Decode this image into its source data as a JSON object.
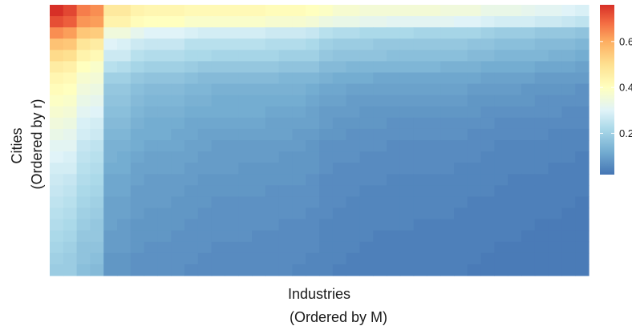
{
  "chart_data": {
    "type": "heatmap",
    "title": "",
    "xlabel": "Industries",
    "xlabel_sub": "(Ordered by M)",
    "ylabel": "Cities",
    "ylabel_sub": "(Ordered by r)",
    "x_tick_labels": [],
    "y_tick_labels": [],
    "grid": false,
    "legend_position": "right",
    "color_scale": {
      "type": "continuous",
      "range": [
        0.02,
        0.76
      ],
      "ticks": [
        0.2,
        0.4,
        0.6
      ],
      "tick_labels": [
        "0.2",
        "0.4",
        "0.6"
      ],
      "palette": [
        [
          0.02,
          "#4575b4"
        ],
        [
          0.12,
          "#74add1"
        ],
        [
          0.22,
          "#abd9e9"
        ],
        [
          0.3,
          "#e0f3f8"
        ],
        [
          0.4,
          "#ffffbf"
        ],
        [
          0.5,
          "#fee090"
        ],
        [
          0.6,
          "#fdae61"
        ],
        [
          0.68,
          "#f46d43"
        ],
        [
          0.76,
          "#d73027"
        ]
      ]
    },
    "rows": 24,
    "cols": 40,
    "values": [
      [
        0.76,
        0.73,
        0.66,
        0.64,
        0.47,
        0.47,
        0.44,
        0.43,
        0.43,
        0.43,
        0.42,
        0.42,
        0.42,
        0.42,
        0.42,
        0.42,
        0.41,
        0.41,
        0.41,
        0.4,
        0.39,
        0.37,
        0.37,
        0.36,
        0.36,
        0.36,
        0.36,
        0.36,
        0.36,
        0.35,
        0.35,
        0.35,
        0.33,
        0.33,
        0.33,
        0.32,
        0.31,
        0.31,
        0.3,
        0.29
      ],
      [
        0.72,
        0.7,
        0.63,
        0.62,
        0.44,
        0.44,
        0.41,
        0.4,
        0.4,
        0.4,
        0.38,
        0.38,
        0.38,
        0.38,
        0.38,
        0.38,
        0.37,
        0.37,
        0.37,
        0.36,
        0.34,
        0.33,
        0.33,
        0.32,
        0.32,
        0.31,
        0.31,
        0.31,
        0.31,
        0.31,
        0.3,
        0.3,
        0.29,
        0.28,
        0.28,
        0.28,
        0.27,
        0.27,
        0.26,
        0.25
      ],
      [
        0.64,
        0.62,
        0.55,
        0.54,
        0.35,
        0.35,
        0.32,
        0.3,
        0.3,
        0.3,
        0.29,
        0.28,
        0.28,
        0.28,
        0.28,
        0.28,
        0.27,
        0.27,
        0.27,
        0.26,
        0.24,
        0.23,
        0.23,
        0.22,
        0.22,
        0.22,
        0.22,
        0.21,
        0.21,
        0.21,
        0.21,
        0.21,
        0.2,
        0.19,
        0.19,
        0.19,
        0.18,
        0.18,
        0.18,
        0.17
      ],
      [
        0.56,
        0.55,
        0.48,
        0.46,
        0.3,
        0.29,
        0.27,
        0.26,
        0.26,
        0.26,
        0.24,
        0.24,
        0.24,
        0.24,
        0.24,
        0.24,
        0.23,
        0.23,
        0.23,
        0.22,
        0.2,
        0.19,
        0.19,
        0.19,
        0.18,
        0.18,
        0.18,
        0.18,
        0.18,
        0.18,
        0.18,
        0.17,
        0.17,
        0.16,
        0.16,
        0.16,
        0.15,
        0.15,
        0.15,
        0.14
      ],
      [
        0.51,
        0.5,
        0.44,
        0.42,
        0.27,
        0.27,
        0.24,
        0.23,
        0.23,
        0.23,
        0.22,
        0.22,
        0.21,
        0.21,
        0.21,
        0.21,
        0.21,
        0.2,
        0.2,
        0.2,
        0.18,
        0.17,
        0.17,
        0.17,
        0.17,
        0.16,
        0.16,
        0.16,
        0.16,
        0.16,
        0.16,
        0.15,
        0.15,
        0.14,
        0.14,
        0.14,
        0.14,
        0.13,
        0.13,
        0.12
      ],
      [
        0.46,
        0.45,
        0.4,
        0.38,
        0.24,
        0.23,
        0.21,
        0.2,
        0.2,
        0.2,
        0.19,
        0.18,
        0.18,
        0.18,
        0.18,
        0.18,
        0.18,
        0.17,
        0.17,
        0.17,
        0.15,
        0.15,
        0.14,
        0.14,
        0.14,
        0.14,
        0.14,
        0.14,
        0.14,
        0.13,
        0.13,
        0.13,
        0.12,
        0.12,
        0.12,
        0.12,
        0.11,
        0.11,
        0.11,
        0.1
      ],
      [
        0.43,
        0.42,
        0.37,
        0.36,
        0.2,
        0.2,
        0.18,
        0.17,
        0.17,
        0.17,
        0.16,
        0.15,
        0.15,
        0.15,
        0.15,
        0.15,
        0.15,
        0.14,
        0.14,
        0.14,
        0.13,
        0.12,
        0.12,
        0.12,
        0.11,
        0.11,
        0.11,
        0.11,
        0.11,
        0.11,
        0.11,
        0.11,
        0.1,
        0.1,
        0.1,
        0.1,
        0.09,
        0.09,
        0.09,
        0.09
      ],
      [
        0.41,
        0.4,
        0.35,
        0.34,
        0.18,
        0.18,
        0.16,
        0.15,
        0.15,
        0.15,
        0.14,
        0.14,
        0.13,
        0.13,
        0.13,
        0.13,
        0.13,
        0.13,
        0.13,
        0.12,
        0.11,
        0.11,
        0.1,
        0.1,
        0.1,
        0.1,
        0.1,
        0.1,
        0.1,
        0.1,
        0.1,
        0.09,
        0.09,
        0.09,
        0.09,
        0.08,
        0.08,
        0.08,
        0.08,
        0.07
      ],
      [
        0.39,
        0.38,
        0.33,
        0.32,
        0.17,
        0.17,
        0.15,
        0.14,
        0.14,
        0.14,
        0.13,
        0.13,
        0.12,
        0.12,
        0.12,
        0.12,
        0.12,
        0.12,
        0.12,
        0.11,
        0.1,
        0.1,
        0.09,
        0.09,
        0.09,
        0.09,
        0.09,
        0.09,
        0.09,
        0.09,
        0.09,
        0.08,
        0.08,
        0.08,
        0.08,
        0.08,
        0.07,
        0.07,
        0.07,
        0.07
      ],
      [
        0.37,
        0.36,
        0.31,
        0.3,
        0.16,
        0.16,
        0.14,
        0.13,
        0.13,
        0.13,
        0.12,
        0.12,
        0.12,
        0.12,
        0.12,
        0.12,
        0.11,
        0.11,
        0.11,
        0.1,
        0.09,
        0.09,
        0.09,
        0.08,
        0.08,
        0.08,
        0.08,
        0.08,
        0.08,
        0.08,
        0.08,
        0.08,
        0.07,
        0.07,
        0.07,
        0.07,
        0.07,
        0.07,
        0.06,
        0.06
      ],
      [
        0.35,
        0.34,
        0.29,
        0.28,
        0.15,
        0.15,
        0.13,
        0.12,
        0.12,
        0.12,
        0.11,
        0.11,
        0.11,
        0.11,
        0.11,
        0.11,
        0.1,
        0.1,
        0.1,
        0.1,
        0.09,
        0.08,
        0.08,
        0.08,
        0.08,
        0.07,
        0.07,
        0.07,
        0.07,
        0.07,
        0.07,
        0.07,
        0.07,
        0.06,
        0.06,
        0.06,
        0.06,
        0.06,
        0.06,
        0.06
      ],
      [
        0.33,
        0.32,
        0.28,
        0.27,
        0.14,
        0.14,
        0.12,
        0.12,
        0.12,
        0.11,
        0.11,
        0.1,
        0.1,
        0.1,
        0.1,
        0.1,
        0.1,
        0.1,
        0.09,
        0.09,
        0.08,
        0.08,
        0.07,
        0.07,
        0.07,
        0.07,
        0.07,
        0.07,
        0.07,
        0.07,
        0.07,
        0.06,
        0.06,
        0.06,
        0.06,
        0.06,
        0.06,
        0.05,
        0.05,
        0.05
      ],
      [
        0.31,
        0.31,
        0.26,
        0.25,
        0.13,
        0.13,
        0.12,
        0.11,
        0.11,
        0.11,
        0.1,
        0.1,
        0.09,
        0.09,
        0.09,
        0.09,
        0.09,
        0.09,
        0.09,
        0.08,
        0.07,
        0.07,
        0.07,
        0.07,
        0.07,
        0.06,
        0.06,
        0.06,
        0.06,
        0.06,
        0.06,
        0.06,
        0.06,
        0.05,
        0.05,
        0.05,
        0.05,
        0.05,
        0.05,
        0.05
      ],
      [
        0.3,
        0.29,
        0.25,
        0.24,
        0.13,
        0.12,
        0.11,
        0.1,
        0.1,
        0.1,
        0.1,
        0.09,
        0.09,
        0.09,
        0.09,
        0.09,
        0.09,
        0.08,
        0.08,
        0.08,
        0.07,
        0.07,
        0.07,
        0.06,
        0.06,
        0.06,
        0.06,
        0.06,
        0.06,
        0.06,
        0.06,
        0.06,
        0.05,
        0.05,
        0.05,
        0.05,
        0.05,
        0.05,
        0.05,
        0.04
      ],
      [
        0.28,
        0.28,
        0.24,
        0.23,
        0.12,
        0.12,
        0.1,
        0.1,
        0.1,
        0.1,
        0.09,
        0.09,
        0.09,
        0.09,
        0.08,
        0.08,
        0.08,
        0.08,
        0.08,
        0.08,
        0.07,
        0.06,
        0.06,
        0.06,
        0.06,
        0.06,
        0.06,
        0.06,
        0.06,
        0.06,
        0.05,
        0.05,
        0.05,
        0.05,
        0.05,
        0.05,
        0.05,
        0.04,
        0.04,
        0.04
      ],
      [
        0.27,
        0.26,
        0.23,
        0.22,
        0.11,
        0.11,
        0.1,
        0.09,
        0.09,
        0.09,
        0.09,
        0.08,
        0.08,
        0.08,
        0.08,
        0.08,
        0.08,
        0.08,
        0.08,
        0.07,
        0.06,
        0.06,
        0.06,
        0.06,
        0.06,
        0.05,
        0.05,
        0.05,
        0.05,
        0.05,
        0.05,
        0.05,
        0.05,
        0.05,
        0.04,
        0.04,
        0.04,
        0.04,
        0.04,
        0.04
      ],
      [
        0.26,
        0.25,
        0.22,
        0.21,
        0.11,
        0.11,
        0.09,
        0.09,
        0.09,
        0.09,
        0.08,
        0.08,
        0.08,
        0.08,
        0.08,
        0.08,
        0.07,
        0.07,
        0.07,
        0.07,
        0.06,
        0.06,
        0.06,
        0.05,
        0.05,
        0.05,
        0.05,
        0.05,
        0.05,
        0.05,
        0.05,
        0.05,
        0.05,
        0.04,
        0.04,
        0.04,
        0.04,
        0.04,
        0.04,
        0.04
      ],
      [
        0.25,
        0.24,
        0.21,
        0.2,
        0.1,
        0.1,
        0.09,
        0.09,
        0.09,
        0.08,
        0.08,
        0.08,
        0.07,
        0.07,
        0.07,
        0.07,
        0.07,
        0.07,
        0.07,
        0.07,
        0.06,
        0.06,
        0.05,
        0.05,
        0.05,
        0.05,
        0.05,
        0.05,
        0.05,
        0.05,
        0.05,
        0.04,
        0.04,
        0.04,
        0.04,
        0.04,
        0.04,
        0.04,
        0.04,
        0.03
      ],
      [
        0.24,
        0.23,
        0.2,
        0.19,
        0.1,
        0.1,
        0.09,
        0.08,
        0.08,
        0.08,
        0.08,
        0.07,
        0.07,
        0.07,
        0.07,
        0.07,
        0.07,
        0.07,
        0.07,
        0.06,
        0.06,
        0.05,
        0.05,
        0.05,
        0.05,
        0.05,
        0.05,
        0.05,
        0.05,
        0.05,
        0.04,
        0.04,
        0.04,
        0.04,
        0.04,
        0.04,
        0.04,
        0.04,
        0.03,
        0.03
      ],
      [
        0.23,
        0.22,
        0.19,
        0.18,
        0.1,
        0.09,
        0.08,
        0.08,
        0.08,
        0.08,
        0.07,
        0.07,
        0.07,
        0.07,
        0.07,
        0.07,
        0.07,
        0.06,
        0.06,
        0.06,
        0.05,
        0.05,
        0.05,
        0.05,
        0.05,
        0.05,
        0.05,
        0.04,
        0.04,
        0.04,
        0.04,
        0.04,
        0.04,
        0.04,
        0.04,
        0.04,
        0.03,
        0.03,
        0.03,
        0.03
      ],
      [
        0.22,
        0.21,
        0.18,
        0.18,
        0.09,
        0.09,
        0.08,
        0.08,
        0.08,
        0.07,
        0.07,
        0.07,
        0.07,
        0.07,
        0.07,
        0.06,
        0.06,
        0.06,
        0.06,
        0.06,
        0.05,
        0.05,
        0.05,
        0.05,
        0.04,
        0.04,
        0.04,
        0.04,
        0.04,
        0.04,
        0.04,
        0.04,
        0.04,
        0.04,
        0.04,
        0.03,
        0.03,
        0.03,
        0.03,
        0.03
      ],
      [
        0.21,
        0.2,
        0.17,
        0.17,
        0.09,
        0.09,
        0.08,
        0.07,
        0.07,
        0.07,
        0.07,
        0.07,
        0.06,
        0.06,
        0.06,
        0.06,
        0.06,
        0.06,
        0.06,
        0.06,
        0.05,
        0.05,
        0.05,
        0.04,
        0.04,
        0.04,
        0.04,
        0.04,
        0.04,
        0.04,
        0.04,
        0.04,
        0.04,
        0.03,
        0.03,
        0.03,
        0.03,
        0.03,
        0.03,
        0.03
      ],
      [
        0.2,
        0.19,
        0.17,
        0.16,
        0.08,
        0.08,
        0.07,
        0.07,
        0.07,
        0.07,
        0.07,
        0.06,
        0.06,
        0.06,
        0.06,
        0.06,
        0.06,
        0.06,
        0.06,
        0.05,
        0.05,
        0.05,
        0.04,
        0.04,
        0.04,
        0.04,
        0.04,
        0.04,
        0.04,
        0.04,
        0.04,
        0.04,
        0.03,
        0.03,
        0.03,
        0.03,
        0.03,
        0.03,
        0.03,
        0.03
      ],
      [
        0.19,
        0.19,
        0.16,
        0.15,
        0.08,
        0.08,
        0.07,
        0.07,
        0.07,
        0.07,
        0.06,
        0.06,
        0.06,
        0.06,
        0.06,
        0.06,
        0.06,
        0.06,
        0.05,
        0.05,
        0.05,
        0.04,
        0.04,
        0.04,
        0.04,
        0.04,
        0.04,
        0.04,
        0.04,
        0.04,
        0.04,
        0.03,
        0.03,
        0.03,
        0.03,
        0.03,
        0.03,
        0.03,
        0.03,
        0.03
      ]
    ]
  }
}
